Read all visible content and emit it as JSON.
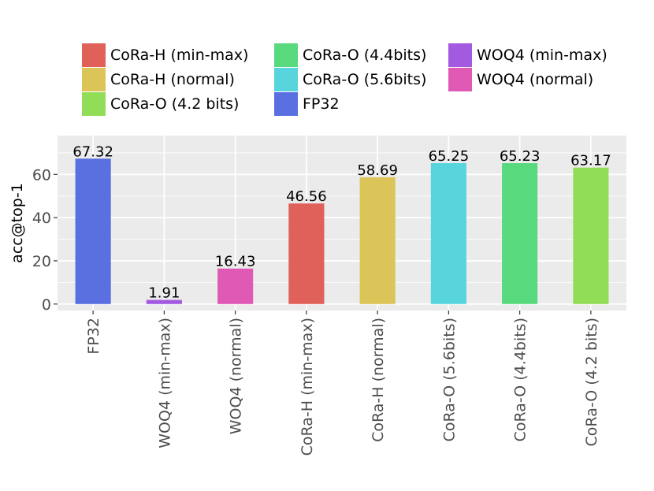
{
  "chart_data": {
    "type": "bar",
    "title": "",
    "xlabel": "",
    "ylabel": "acc@top-1",
    "ylim": [
      -3,
      78
    ],
    "yticks": [
      0,
      20,
      40,
      60
    ],
    "ytick_labels": [
      "0",
      "20",
      "40",
      "60"
    ],
    "grid": true,
    "legend_position": "top",
    "categories": [
      "FP32",
      "WOQ4 (min-max)",
      "WOQ4 (normal)",
      "CoRa-H (min-max)",
      "CoRa-H (normal)",
      "CoRa-O (5.6bits)",
      "CoRa-O (4.4bits)",
      "CoRa-O (4.2 bits)"
    ],
    "values": [
      67.32,
      1.91,
      16.43,
      46.56,
      58.69,
      65.25,
      65.23,
      63.17
    ],
    "value_labels": [
      "67.32",
      "1.91",
      "16.43",
      "46.56",
      "58.69",
      "65.25",
      "65.23",
      "63.17"
    ],
    "colors": [
      "#5a6fe0",
      "#a35ae0",
      "#e05ab5",
      "#e0605a",
      "#dbc458",
      "#58d4dc",
      "#59d97e",
      "#92dd57"
    ],
    "legend": [
      {
        "label": "CoRa-H (min-max)",
        "color": "#e0605a"
      },
      {
        "label": "CoRa-H (normal)",
        "color": "#dbc458"
      },
      {
        "label": "CoRa-O (4.2 bits)",
        "color": "#92dd57"
      },
      {
        "label": "CoRa-O (4.4bits)",
        "color": "#59d97e"
      },
      {
        "label": "CoRa-O (5.6bits)",
        "color": "#58d4dc"
      },
      {
        "label": "FP32",
        "color": "#5a6fe0"
      },
      {
        "label": "WOQ4 (min-max)",
        "color": "#a35ae0"
      },
      {
        "label": "WOQ4 (normal)",
        "color": "#e05ab5"
      }
    ]
  }
}
